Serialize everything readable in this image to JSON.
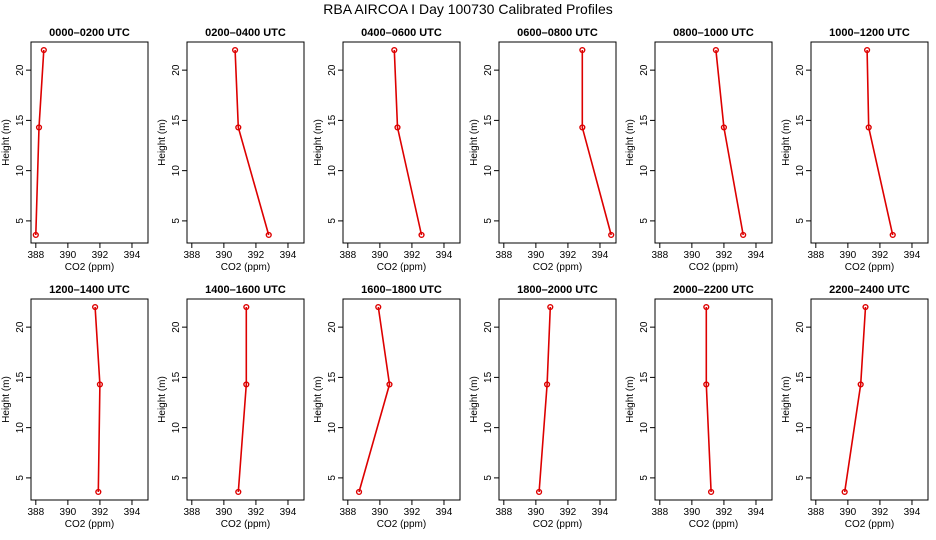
{
  "title": "RBA AIRCOA I  Day 100730  Calibrated Profiles",
  "colors": {
    "series": "#dd0000",
    "axis": "#000000",
    "background": "#ffffff"
  },
  "chart_data": [
    {
      "type": "line",
      "title": "0000–0200 UTC",
      "xlabel": "CO2 (ppm)",
      "ylabel": "Height (m)",
      "xlim": [
        387.7,
        395.0
      ],
      "ylim": [
        2.8,
        22.8
      ],
      "xticks": [
        388,
        390,
        392,
        394
      ],
      "yticks": [
        5,
        10,
        15,
        20
      ],
      "series": [
        {
          "x": [
            388.5,
            388.2,
            388.0
          ],
          "y": [
            22.0,
            14.3,
            3.6
          ]
        }
      ]
    },
    {
      "type": "line",
      "title": "0200–0400 UTC",
      "xlabel": "CO2 (ppm)",
      "ylabel": "Height (m)",
      "xlim": [
        387.7,
        395.0
      ],
      "ylim": [
        2.8,
        22.8
      ],
      "xticks": [
        388,
        390,
        392,
        394
      ],
      "yticks": [
        5,
        10,
        15,
        20
      ],
      "series": [
        {
          "x": [
            390.7,
            390.9,
            392.8
          ],
          "y": [
            22.0,
            14.3,
            3.6
          ]
        }
      ]
    },
    {
      "type": "line",
      "title": "0400–0600 UTC",
      "xlabel": "CO2 (ppm)",
      "ylabel": "Height (m)",
      "xlim": [
        387.7,
        395.0
      ],
      "ylim": [
        2.8,
        22.8
      ],
      "xticks": [
        388,
        390,
        392,
        394
      ],
      "yticks": [
        5,
        10,
        15,
        20
      ],
      "series": [
        {
          "x": [
            390.9,
            391.1,
            392.6
          ],
          "y": [
            22.0,
            14.3,
            3.6
          ]
        }
      ]
    },
    {
      "type": "line",
      "title": "0600–0800 UTC",
      "xlabel": "CO2 (ppm)",
      "ylabel": "Height (m)",
      "xlim": [
        387.7,
        395.0
      ],
      "ylim": [
        2.8,
        22.8
      ],
      "xticks": [
        388,
        390,
        392,
        394
      ],
      "yticks": [
        5,
        10,
        15,
        20
      ],
      "series": [
        {
          "x": [
            392.9,
            392.9,
            394.7
          ],
          "y": [
            22.0,
            14.3,
            3.6
          ]
        }
      ]
    },
    {
      "type": "line",
      "title": "0800–1000 UTC",
      "xlabel": "CO2 (ppm)",
      "ylabel": "Height (m)",
      "xlim": [
        387.7,
        395.0
      ],
      "ylim": [
        2.8,
        22.8
      ],
      "xticks": [
        388,
        390,
        392,
        394
      ],
      "yticks": [
        5,
        10,
        15,
        20
      ],
      "series": [
        {
          "x": [
            391.5,
            392.0,
            393.2
          ],
          "y": [
            22.0,
            14.3,
            3.6
          ]
        }
      ]
    },
    {
      "type": "line",
      "title": "1000–1200 UTC",
      "xlabel": "CO2 (ppm)",
      "ylabel": "Height (m)",
      "xlim": [
        387.7,
        395.0
      ],
      "ylim": [
        2.8,
        22.8
      ],
      "xticks": [
        388,
        390,
        392,
        394
      ],
      "yticks": [
        5,
        10,
        15,
        20
      ],
      "series": [
        {
          "x": [
            391.2,
            391.3,
            392.8
          ],
          "y": [
            22.0,
            14.3,
            3.6
          ]
        }
      ]
    },
    {
      "type": "line",
      "title": "1200–1400 UTC",
      "xlabel": "CO2 (ppm)",
      "ylabel": "Height (m)",
      "xlim": [
        387.7,
        395.0
      ],
      "ylim": [
        2.8,
        22.8
      ],
      "xticks": [
        388,
        390,
        392,
        394
      ],
      "yticks": [
        5,
        10,
        15,
        20
      ],
      "series": [
        {
          "x": [
            391.7,
            392.0,
            391.9
          ],
          "y": [
            22.0,
            14.3,
            3.6
          ]
        }
      ]
    },
    {
      "type": "line",
      "title": "1400–1600 UTC",
      "xlabel": "CO2 (ppm)",
      "ylabel": "Height (m)",
      "xlim": [
        387.7,
        395.0
      ],
      "ylim": [
        2.8,
        22.8
      ],
      "xticks": [
        388,
        390,
        392,
        394
      ],
      "yticks": [
        5,
        10,
        15,
        20
      ],
      "series": [
        {
          "x": [
            391.4,
            391.4,
            390.9
          ],
          "y": [
            22.0,
            14.3,
            3.6
          ]
        }
      ]
    },
    {
      "type": "line",
      "title": "1600–1800 UTC",
      "xlabel": "CO2 (ppm)",
      "ylabel": "Height (m)",
      "xlim": [
        387.7,
        395.0
      ],
      "ylim": [
        2.8,
        22.8
      ],
      "xticks": [
        388,
        390,
        392,
        394
      ],
      "yticks": [
        5,
        10,
        15,
        20
      ],
      "series": [
        {
          "x": [
            389.9,
            390.6,
            388.7
          ],
          "y": [
            22.0,
            14.3,
            3.6
          ]
        }
      ]
    },
    {
      "type": "line",
      "title": "1800–2000 UTC",
      "xlabel": "CO2 (ppm)",
      "ylabel": "Height (m)",
      "xlim": [
        387.7,
        395.0
      ],
      "ylim": [
        2.8,
        22.8
      ],
      "xticks": [
        388,
        390,
        392,
        394
      ],
      "yticks": [
        5,
        10,
        15,
        20
      ],
      "series": [
        {
          "x": [
            390.9,
            390.7,
            390.2
          ],
          "y": [
            22.0,
            14.3,
            3.6
          ]
        }
      ]
    },
    {
      "type": "line",
      "title": "2000–2200 UTC",
      "xlabel": "CO2 (ppm)",
      "ylabel": "Height (m)",
      "xlim": [
        387.7,
        395.0
      ],
      "ylim": [
        2.8,
        22.8
      ],
      "xticks": [
        388,
        390,
        392,
        394
      ],
      "yticks": [
        5,
        10,
        15,
        20
      ],
      "series": [
        {
          "x": [
            390.9,
            390.9,
            391.2
          ],
          "y": [
            22.0,
            14.3,
            3.6
          ]
        }
      ]
    },
    {
      "type": "line",
      "title": "2200–2400 UTC",
      "xlabel": "CO2 (ppm)",
      "ylabel": "Height (m)",
      "xlim": [
        387.7,
        395.0
      ],
      "ylim": [
        2.8,
        22.8
      ],
      "xticks": [
        388,
        390,
        392,
        394
      ],
      "yticks": [
        5,
        10,
        15,
        20
      ],
      "series": [
        {
          "x": [
            391.1,
            390.8,
            389.8
          ],
          "y": [
            22.0,
            14.3,
            3.6
          ]
        }
      ]
    }
  ]
}
